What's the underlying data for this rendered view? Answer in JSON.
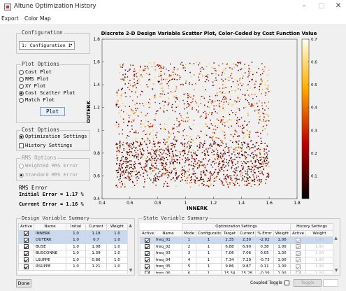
{
  "window": {
    "title": "Altune Optimization History",
    "controls": [
      "–",
      "□",
      "✕"
    ]
  },
  "menu": [
    "Export",
    "Color Map"
  ],
  "configuration": {
    "title": "Configuration",
    "selected": "1: Configuration 1"
  },
  "plot_options": {
    "title": "Plot Options",
    "options": [
      {
        "label": "Cost Plot",
        "checked": false
      },
      {
        "label": "RMS Plot",
        "checked": false
      },
      {
        "label": "XY Plot",
        "checked": false
      },
      {
        "label": "Cost Scatter Plot",
        "checked": true
      },
      {
        "label": "Match Plot",
        "checked": false
      }
    ],
    "plot_button": "Plot"
  },
  "cost_options": {
    "title": "Cost Options",
    "optimization_settings": "Optimization Settings",
    "history_settings": "History Settings"
  },
  "rms_options": {
    "title": "RMS Options",
    "weighted": "Weighted RMS Error",
    "standard": "Standard RMS Error"
  },
  "rms_error": {
    "title": "RMS Error",
    "initial": "Initial Error =  1.17 %",
    "current": "Current Error =  1.16 %"
  },
  "design_summary": {
    "title": "Design Variable Summary",
    "columns": [
      "Active",
      "Name",
      "Initial",
      "Current",
      "Weight"
    ],
    "rows": [
      {
        "active": true,
        "name": "INNERK",
        "initial": "1.0",
        "current": "1.18",
        "weight": "1.0",
        "selected": true
      },
      {
        "active": true,
        "name": "OUTERK",
        "initial": "1.0",
        "current": "0.7",
        "weight": "1.0",
        "selected": true
      },
      {
        "active": true,
        "name": "BUSE",
        "initial": "1.0",
        "current": "1.08",
        "weight": "1.0",
        "selected": false
      },
      {
        "active": true,
        "name": "BUSCONNE",
        "initial": "1.0",
        "current": "1.39",
        "weight": "1.0",
        "selected": false
      },
      {
        "active": true,
        "name": "LSUPPE",
        "initial": "1.0",
        "current": "0.86",
        "weight": "1.0",
        "selected": false
      },
      {
        "active": true,
        "name": "RSUPPE",
        "initial": "1.0",
        "current": "1.21",
        "weight": "1.0",
        "selected": false
      }
    ]
  },
  "state_summary": {
    "title": "State Variable Summary",
    "group_headers": {
      "optimization": "Optimization Settings",
      "history": "History Settings"
    },
    "columns": [
      "Active",
      "Name",
      "Mode",
      "Configuration",
      "Target",
      "Current",
      "% Error",
      "Weight",
      "Active",
      "Weight"
    ],
    "rows": [
      {
        "active": true,
        "name": "freq_01",
        "mode": "1",
        "configuration": "1",
        "target": "2.35",
        "current": "2.30",
        "error": "-2.02",
        "weight": "1.00",
        "h_active": true,
        "h_weight": "1.00",
        "selected": true
      },
      {
        "active": true,
        "name": "freq_02",
        "mode": "2",
        "configuration": "1",
        "target": "6.88",
        "current": "6.90",
        "error": "0.38",
        "weight": "1.00",
        "h_active": true,
        "h_weight": "1.00",
        "selected": false
      },
      {
        "active": true,
        "name": "freq_03",
        "mode": "3",
        "configuration": "1",
        "target": "7.06",
        "current": "7.06",
        "error": "0.05",
        "weight": "1.00",
        "h_active": true,
        "h_weight": "1.00",
        "selected": false
      },
      {
        "active": true,
        "name": "freq_04",
        "mode": "4",
        "configuration": "1",
        "target": "7.34",
        "current": "7.29",
        "error": "-0.73",
        "weight": "1.00",
        "h_active": true,
        "h_weight": "1.00",
        "selected": false
      },
      {
        "active": true,
        "name": "freq_05",
        "mode": "5",
        "configuration": "1",
        "target": "9.86",
        "current": "9.87",
        "error": "0.11",
        "weight": "1.00",
        "h_active": true,
        "h_weight": "1.00",
        "selected": false
      },
      {
        "active": true,
        "name": "freq_06",
        "mode": "6",
        "configuration": "1",
        "target": "15.34",
        "current": "15.28",
        "error": "-0.39",
        "weight": "1.00",
        "h_active": true,
        "h_weight": "1.00",
        "selected": false
      }
    ],
    "coupled_toggle": "Coupled Toggle",
    "toggle_button": "Toggle"
  },
  "done_button": "Done",
  "colors": {
    "highlight": "#c9d9f0",
    "button_border": "#7a9cc6"
  },
  "chart_data": {
    "type": "scatter",
    "title": "Discrete 2-D Design Variable Scatter Plot, Color-Coded by Cost Function Value",
    "xlabel": "INNERK",
    "ylabel": "OUTERK",
    "xlim": [
      0.4,
      1.8
    ],
    "ylim": [
      0.4,
      1.8
    ],
    "xticks": [
      "0.4",
      "0.6",
      "0.8",
      "1",
      "1.2",
      "1.4",
      "1.6",
      "1.8"
    ],
    "yticks": [
      "0.4",
      "0.6",
      "0.8",
      "1",
      "1.2",
      "1.4",
      "1.6",
      "1.8"
    ],
    "colorbar": {
      "range": [
        0,
        0.7
      ],
      "ticks": [
        "0.1",
        "0.2",
        "0.3",
        "0.4",
        "0.5",
        "0.6",
        "0.7"
      ],
      "colormap": "hot"
    },
    "regions": [
      {
        "x_range": [
          0.5,
          1.6
        ],
        "y_range": [
          0.5,
          1.6
        ],
        "cost_range": [
          0.08,
          0.65
        ],
        "count": 1500
      },
      {
        "x_range": [
          0.5,
          1.6
        ],
        "y_range": [
          0.55,
          0.9
        ],
        "cost_range": [
          0.0,
          0.25
        ],
        "count": 700
      }
    ],
    "grid": false
  }
}
